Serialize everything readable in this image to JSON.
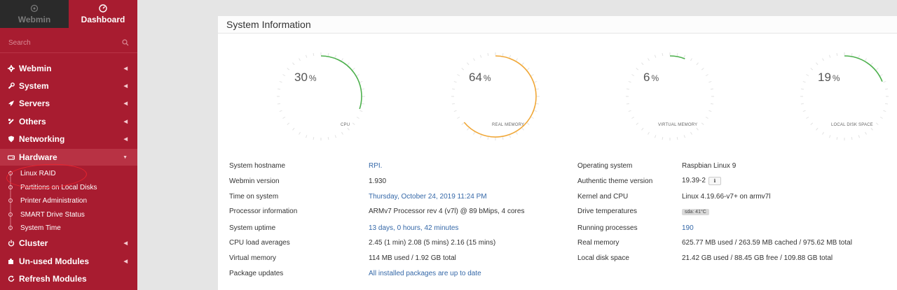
{
  "sidebar": {
    "tabs": [
      {
        "label": "Webmin"
      },
      {
        "label": "Dashboard"
      }
    ],
    "search": {
      "placeholder": "Search"
    },
    "menu": [
      {
        "label": "Webmin",
        "icon": "gear-icon"
      },
      {
        "label": "System",
        "icon": "wrench-icon"
      },
      {
        "label": "Servers",
        "icon": "rocket-icon"
      },
      {
        "label": "Others",
        "icon": "tools-icon"
      },
      {
        "label": "Networking",
        "icon": "shield-icon"
      },
      {
        "label": "Hardware",
        "icon": "hdd-icon"
      },
      {
        "label": "Cluster",
        "icon": "power-icon"
      },
      {
        "label": "Un-used Modules",
        "icon": "puzzle-icon"
      },
      {
        "label": "Refresh Modules",
        "icon": "refresh-icon"
      }
    ],
    "hardware_sub": [
      {
        "label": "Linux RAID"
      },
      {
        "label": "Partitions on Local Disks"
      },
      {
        "label": "Printer Administration"
      },
      {
        "label": "SMART Drive Status"
      },
      {
        "label": "System Time"
      }
    ]
  },
  "panel": {
    "title": "System Information"
  },
  "gauges": [
    {
      "value": "30",
      "pct": "%",
      "label": "CPU",
      "fraction": 0.3,
      "color": "#4cb04c"
    },
    {
      "value": "64",
      "pct": "%",
      "label": "REAL MEMORY",
      "fraction": 0.64,
      "color": "#f0a737"
    },
    {
      "value": "6",
      "pct": "%",
      "label": "VIRTUAL MEMORY",
      "fraction": 0.06,
      "color": "#4cb04c"
    },
    {
      "value": "19",
      "pct": "%",
      "label": "LOCAL DISK SPACE",
      "fraction": 0.19,
      "color": "#4cb04c"
    }
  ],
  "info_left": [
    {
      "label": "System hostname",
      "value": "RPI.",
      "link": true
    },
    {
      "label": "Webmin version",
      "value": "1.930",
      "link": false
    },
    {
      "label": "Time on system",
      "value": "Thursday, October 24, 2019 11:24 PM",
      "link": true
    },
    {
      "label": "Processor information",
      "value": "ARMv7 Processor rev 4 (v7l) @ 89 bMips, 4 cores",
      "link": false
    },
    {
      "label": "System uptime",
      "value": "13 days, 0 hours, 42 minutes",
      "link": true
    },
    {
      "label": "CPU load averages",
      "value": "2.45 (1 min) 2.08 (5 mins) 2.16 (15 mins)",
      "link": false
    },
    {
      "label": "Virtual memory",
      "value": "114 MB used / 1.92 GB total",
      "link": false
    },
    {
      "label": "Package updates",
      "value": "All installed packages are up to date",
      "link": true
    }
  ],
  "info_right": [
    {
      "label": "Operating system",
      "value": "Raspbian Linux 9",
      "link": false
    },
    {
      "label": "Authentic theme version",
      "value": "19.39-2",
      "link": false
    },
    {
      "label": "Kernel and CPU",
      "value": "Linux 4.19.66-v7+ on armv7l",
      "link": false
    },
    {
      "label": "Drive temperatures",
      "value": "sda: 41°C",
      "link": false
    },
    {
      "label": "Running processes",
      "value": "190",
      "link": true
    },
    {
      "label": "Real memory",
      "value": "625.77 MB used / 263.59 MB cached / 975.62 MB total",
      "link": false
    },
    {
      "label": "Local disk space",
      "value": "21.42 GB used / 88.45 GB free / 109.88 GB total",
      "link": false
    }
  ],
  "colors": {
    "sidebar": "#a81c30",
    "link": "#3568a8",
    "gauge_green": "#4cb04c",
    "gauge_orange": "#f0a737"
  }
}
